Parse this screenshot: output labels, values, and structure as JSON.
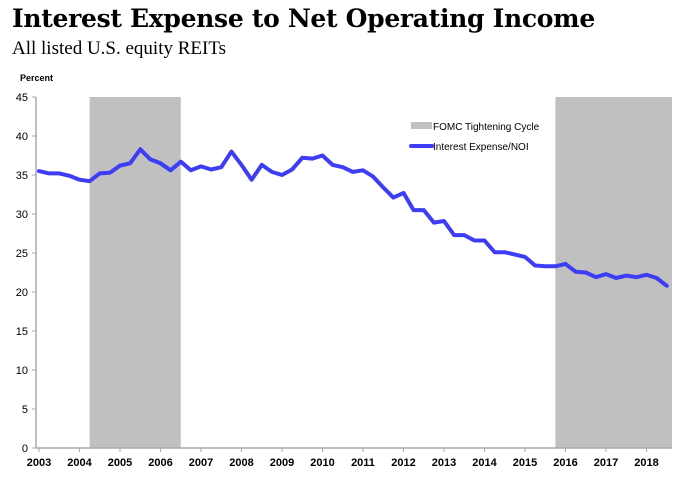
{
  "chart_data": {
    "type": "line",
    "title": "Interest Expense to Net Operating Income",
    "subtitle": "All listed U.S. equity REITs",
    "ylabel": "Percent",
    "xlabel": "",
    "ylim": [
      0,
      45
    ],
    "yticks": [
      0,
      5,
      10,
      15,
      20,
      25,
      30,
      35,
      40,
      45
    ],
    "xlim": [
      2003,
      2018.75
    ],
    "xticks": [
      2003,
      2004,
      2005,
      2006,
      2007,
      2008,
      2009,
      2010,
      2011,
      2012,
      2013,
      2014,
      2015,
      2016,
      2017,
      2018
    ],
    "xtick_labels": [
      "2003",
      "2004",
      "2005",
      "2006",
      "2007",
      "2008",
      "2009",
      "2010",
      "2011",
      "2012",
      "2013",
      "2014",
      "2015",
      "2016",
      "2017",
      "2018"
    ],
    "grid": false,
    "legend_position": "top-right",
    "shaded_regions": {
      "name": "FOMC Tightening Cycle",
      "color": "#c0c0c0",
      "ranges": [
        [
          2004.25,
          2006.5
        ],
        [
          2015.75,
          2018.75
        ]
      ]
    },
    "series": [
      {
        "name": "Interest Expense/NOI",
        "color": "#3d3df5",
        "x": [
          2003.0,
          2003.25,
          2003.5,
          2003.75,
          2004.0,
          2004.25,
          2004.5,
          2004.75,
          2005.0,
          2005.25,
          2005.5,
          2005.75,
          2006.0,
          2006.25,
          2006.5,
          2006.75,
          2007.0,
          2007.25,
          2007.5,
          2007.75,
          2008.0,
          2008.25,
          2008.5,
          2008.75,
          2009.0,
          2009.25,
          2009.5,
          2009.75,
          2010.0,
          2010.25,
          2010.5,
          2010.75,
          2011.0,
          2011.25,
          2011.5,
          2011.75,
          2012.0,
          2012.25,
          2012.5,
          2012.75,
          2013.0,
          2013.25,
          2013.5,
          2013.75,
          2014.0,
          2014.25,
          2014.5,
          2014.75,
          2015.0,
          2015.25,
          2015.5,
          2015.75,
          2016.0,
          2016.25,
          2016.5,
          2016.75,
          2017.0,
          2017.25,
          2017.5,
          2017.75,
          2018.0,
          2018.25,
          2018.5
        ],
        "values": [
          35.5,
          35.2,
          35.2,
          34.9,
          34.4,
          34.2,
          35.2,
          35.3,
          36.2,
          36.5,
          38.3,
          37.0,
          36.5,
          35.6,
          36.7,
          35.6,
          36.1,
          35.7,
          36.0,
          38.0,
          36.3,
          34.4,
          36.3,
          35.4,
          35.0,
          35.7,
          37.2,
          37.1,
          37.5,
          36.3,
          36.0,
          35.4,
          35.6,
          34.8,
          33.4,
          32.1,
          32.7,
          30.5,
          30.5,
          28.9,
          29.1,
          27.3,
          27.3,
          26.6,
          26.6,
          25.1,
          25.1,
          24.8,
          24.5,
          23.4,
          23.3,
          23.3,
          23.6,
          22.6,
          22.5,
          21.9,
          22.3,
          21.8,
          22.1,
          21.9,
          22.2,
          21.8,
          20.8
        ]
      }
    ],
    "legend": [
      {
        "label": "FOMC Tightening Cycle",
        "kind": "patch",
        "color": "#c0c0c0"
      },
      {
        "label": "Interest Expense/NOI",
        "kind": "line",
        "color": "#3d3df5"
      }
    ]
  }
}
